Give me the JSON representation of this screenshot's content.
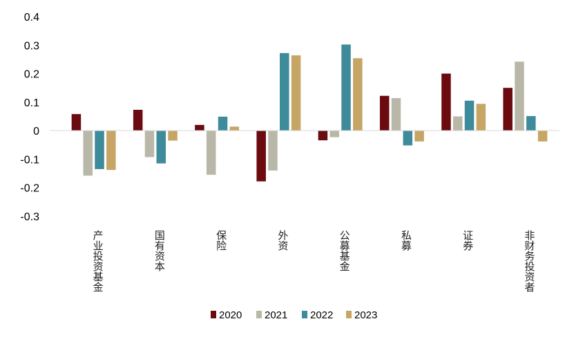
{
  "chart_data": {
    "type": "bar",
    "categories": [
      "产业投资基金",
      "国有资本",
      "保险",
      "外资",
      "公募基金",
      "私募",
      "证券",
      "非财务投资者"
    ],
    "series": [
      {
        "name": "2020",
        "color": "#6b0a0f",
        "values": [
          0.058,
          0.073,
          0.02,
          -0.178,
          -0.034,
          0.122,
          0.2,
          0.15
        ]
      },
      {
        "name": "2021",
        "color": "#b9b8a8",
        "values": [
          -0.158,
          -0.093,
          -0.155,
          -0.14,
          -0.023,
          0.114,
          0.05,
          0.242
        ]
      },
      {
        "name": "2022",
        "color": "#3e8b9b",
        "values": [
          -0.135,
          -0.115,
          0.049,
          0.272,
          0.302,
          -0.052,
          0.105,
          0.051
        ]
      },
      {
        "name": "2023",
        "color": "#c6a565",
        "values": [
          -0.138,
          -0.035,
          0.014,
          0.264,
          0.254,
          -0.038,
          0.094,
          -0.038
        ]
      }
    ],
    "ylim": [
      -0.3,
      0.4
    ],
    "yticks": [
      "0.4",
      "0.3",
      "0.2",
      "0.1",
      "0",
      "-0.1",
      "-0.2",
      "-0.3"
    ],
    "ytick_values": [
      0.4,
      0.3,
      0.2,
      0.1,
      0,
      -0.1,
      -0.2,
      -0.3
    ],
    "grid": false,
    "legend_position": "bottom"
  }
}
